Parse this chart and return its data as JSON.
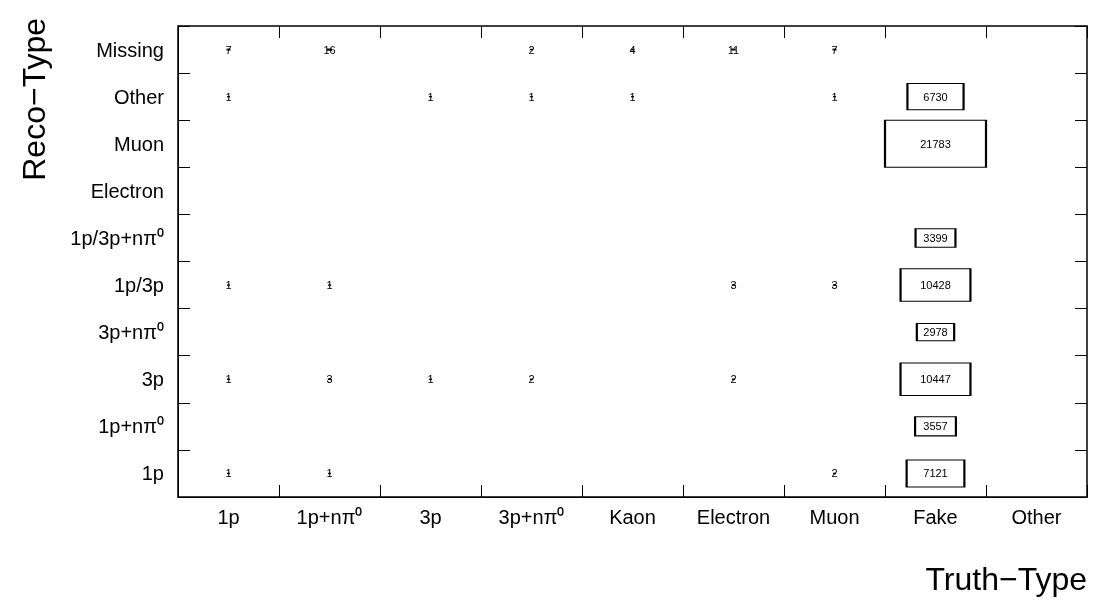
{
  "chart_data": {
    "type": "heatmap",
    "data_labels": true,
    "xlabel": "Truth−Type",
    "ylabel": "Reco−Type",
    "categories": [
      "1p",
      "1p+nπ⁰",
      "3p",
      "3p+nπ⁰",
      "Kaon",
      "Electron",
      "Muon",
      "Fake",
      "Other"
    ],
    "y_categories": [
      "Missing",
      "Other",
      "Muon",
      "Electron",
      "1p/3p+nπ⁰",
      "1p/3p",
      "3p+nπ⁰",
      "3p",
      "1p+nπ⁰",
      "1p"
    ],
    "cells": [
      [
        7,
        16,
        null,
        2,
        4,
        11,
        7,
        null,
        null
      ],
      [
        1,
        null,
        1,
        1,
        1,
        null,
        1,
        6730,
        null
      ],
      [
        null,
        null,
        null,
        null,
        null,
        null,
        null,
        21783,
        null
      ],
      [
        null,
        null,
        null,
        null,
        null,
        null,
        null,
        null,
        null
      ],
      [
        null,
        null,
        null,
        null,
        null,
        null,
        null,
        3399,
        null
      ],
      [
        1,
        1,
        null,
        null,
        null,
        3,
        3,
        10428,
        null
      ],
      [
        null,
        null,
        null,
        null,
        null,
        null,
        null,
        2978,
        null
      ],
      [
        1,
        3,
        1,
        2,
        null,
        2,
        null,
        10447,
        null
      ],
      [
        null,
        null,
        null,
        null,
        null,
        null,
        null,
        3557,
        null
      ],
      [
        1,
        1,
        null,
        null,
        null,
        null,
        2,
        7121,
        null
      ]
    ]
  }
}
